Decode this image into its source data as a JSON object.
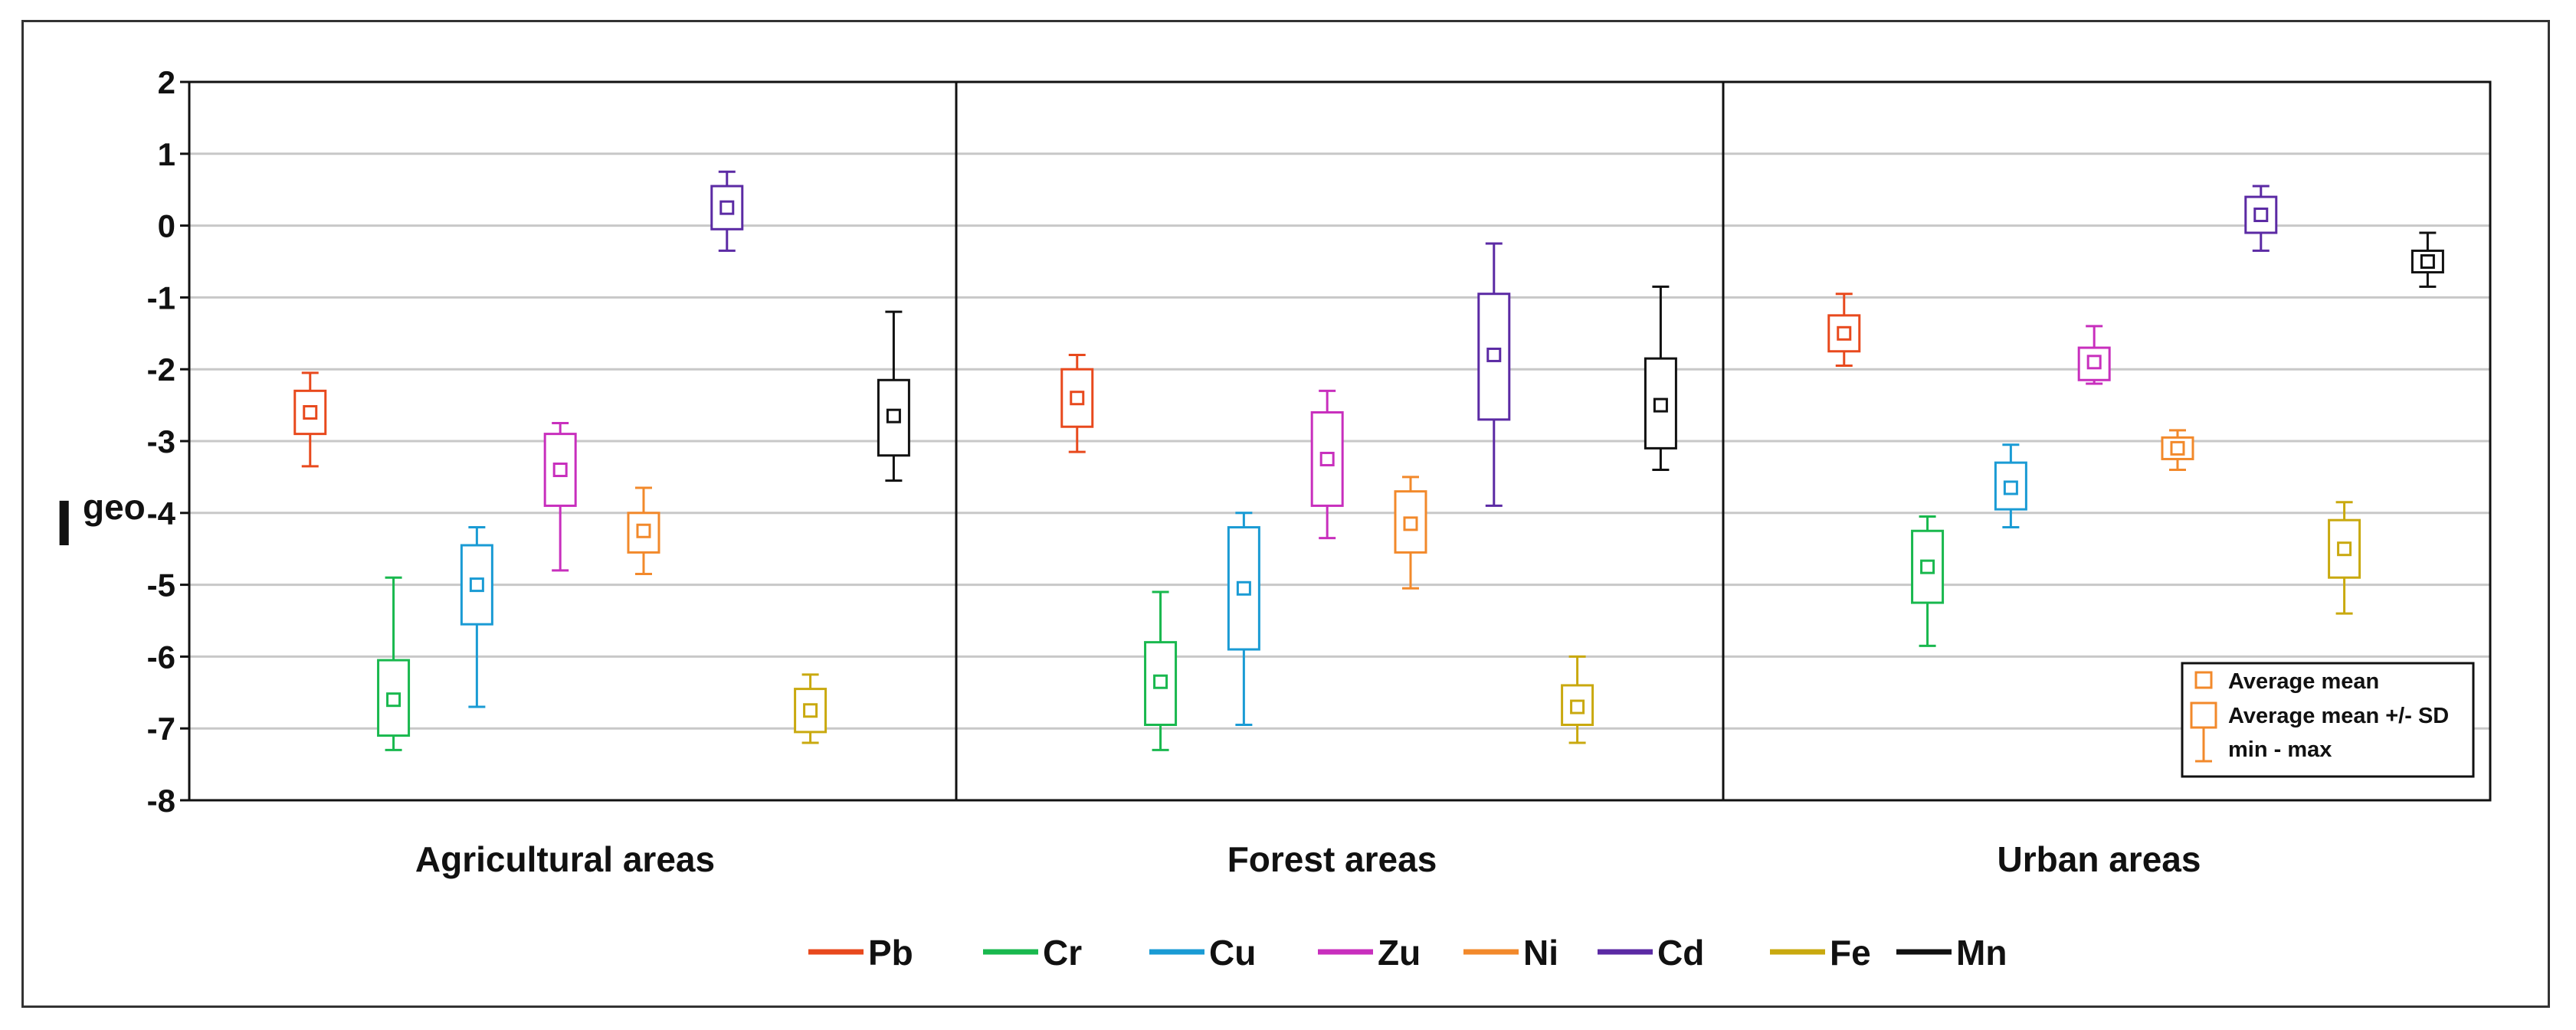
{
  "chart_data": {
    "type": "box",
    "ylabel": "I",
    "ylabel_subscript": "geo",
    "ylim": [
      -8,
      2
    ],
    "yticks": [
      "2",
      "1",
      "0",
      "-1",
      "-2",
      "-3",
      "-4",
      "-5",
      "-6",
      "-7",
      "-8"
    ],
    "grid": "horizontal",
    "groups": [
      "Agricultural areas",
      "Forest areas",
      "Urban areas"
    ],
    "series": [
      {
        "name": "Pb",
        "color": "#e8491d"
      },
      {
        "name": "Cr",
        "color": "#19b84e"
      },
      {
        "name": "Cu",
        "color": "#1a9bd4"
      },
      {
        "name": "Zu",
        "color": "#c82fbd"
      },
      {
        "name": "Ni",
        "color": "#f2892b"
      },
      {
        "name": "Cd",
        "color": "#5b2aa4"
      },
      {
        "name": "Fe",
        "color": "#c9a90f"
      },
      {
        "name": "Mn",
        "color": "#111111"
      }
    ],
    "boxes": [
      [
        {
          "series": "Pb",
          "mean": -2.6,
          "sd_low": -2.9,
          "sd_high": -2.3,
          "min": -3.35,
          "max": -2.05
        },
        {
          "series": "Cr",
          "mean": -6.6,
          "sd_low": -7.1,
          "sd_high": -6.05,
          "min": -7.3,
          "max": -4.9
        },
        {
          "series": "Cu",
          "mean": -5.0,
          "sd_low": -5.55,
          "sd_high": -4.45,
          "min": -6.7,
          "max": -4.2
        },
        {
          "series": "Zu",
          "mean": -3.4,
          "sd_low": -3.9,
          "sd_high": -2.9,
          "min": -4.8,
          "max": -2.75
        },
        {
          "series": "Ni",
          "mean": -4.25,
          "sd_low": -4.55,
          "sd_high": -4.0,
          "min": -4.85,
          "max": -3.65
        },
        {
          "series": "Cd",
          "mean": 0.25,
          "sd_low": -0.05,
          "sd_high": 0.55,
          "min": -0.35,
          "max": 0.75
        },
        {
          "series": "Fe",
          "mean": -6.75,
          "sd_low": -7.05,
          "sd_high": -6.45,
          "min": -7.2,
          "max": -6.25
        },
        {
          "series": "Mn",
          "mean": -2.65,
          "sd_low": -3.2,
          "sd_high": -2.15,
          "min": -3.55,
          "max": -1.2
        }
      ],
      [
        {
          "series": "Pb",
          "mean": -2.4,
          "sd_low": -2.8,
          "sd_high": -2.0,
          "min": -3.15,
          "max": -1.8
        },
        {
          "series": "Cr",
          "mean": -6.35,
          "sd_low": -6.95,
          "sd_high": -5.8,
          "min": -7.3,
          "max": -5.1
        },
        {
          "series": "Cu",
          "mean": -5.05,
          "sd_low": -5.9,
          "sd_high": -4.2,
          "min": -6.95,
          "max": -4.0
        },
        {
          "series": "Zu",
          "mean": -3.25,
          "sd_low": -3.9,
          "sd_high": -2.6,
          "min": -4.35,
          "max": -2.3
        },
        {
          "series": "Ni",
          "mean": -4.15,
          "sd_low": -4.55,
          "sd_high": -3.7,
          "min": -5.05,
          "max": -3.5
        },
        {
          "series": "Cd",
          "mean": -1.8,
          "sd_low": -2.7,
          "sd_high": -0.95,
          "min": -3.9,
          "max": -0.25
        },
        {
          "series": "Fe",
          "mean": -6.7,
          "sd_low": -6.95,
          "sd_high": -6.4,
          "min": -7.2,
          "max": -6.0
        },
        {
          "series": "Mn",
          "mean": -2.5,
          "sd_low": -3.1,
          "sd_high": -1.85,
          "min": -3.4,
          "max": -0.85
        }
      ],
      [
        {
          "series": "Pb",
          "mean": -1.5,
          "sd_low": -1.75,
          "sd_high": -1.25,
          "min": -1.95,
          "max": -0.95
        },
        {
          "series": "Cr",
          "mean": -4.75,
          "sd_low": -5.25,
          "sd_high": -4.25,
          "min": -5.85,
          "max": -4.05
        },
        {
          "series": "Cu",
          "mean": -3.65,
          "sd_low": -3.95,
          "sd_high": -3.3,
          "min": -4.2,
          "max": -3.05
        },
        {
          "series": "Zu",
          "mean": -1.9,
          "sd_low": -2.15,
          "sd_high": -1.7,
          "min": -2.2,
          "max": -1.4
        },
        {
          "series": "Ni",
          "mean": -3.1,
          "sd_low": -3.25,
          "sd_high": -2.95,
          "min": -3.4,
          "max": -2.85
        },
        {
          "series": "Cd",
          "mean": 0.15,
          "sd_low": -0.1,
          "sd_high": 0.4,
          "min": -0.35,
          "max": 0.55
        },
        {
          "series": "Fe",
          "mean": -4.5,
          "sd_low": -4.9,
          "sd_high": -4.1,
          "min": -5.4,
          "max": -3.85
        },
        {
          "series": "Mn",
          "mean": -0.5,
          "sd_low": -0.65,
          "sd_high": -0.35,
          "min": -0.85,
          "max": -0.1
        }
      ]
    ],
    "key": {
      "placement": "bottom-right",
      "items": [
        "Average mean",
        "Average mean +/- SD",
        "min - max"
      ],
      "color": "#f2892b"
    },
    "legend_placement": "bottom"
  }
}
